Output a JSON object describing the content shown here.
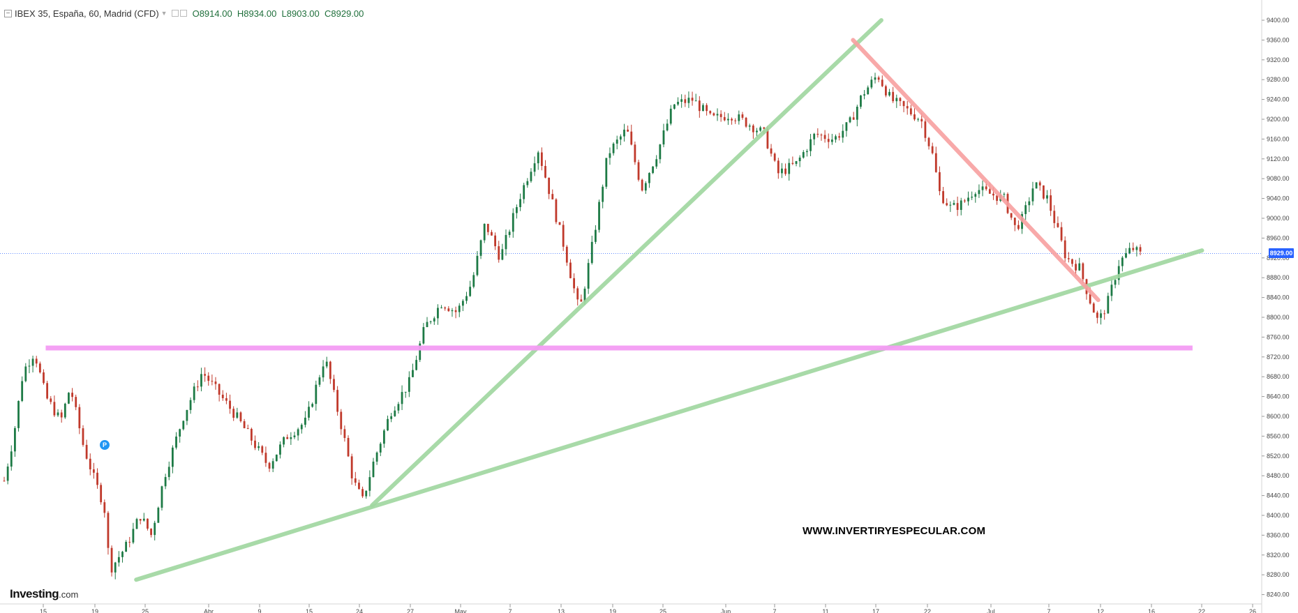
{
  "legend": {
    "symbol": "IBEX 35, España, 60, Madrid (CFD)",
    "open": "O8914.00",
    "high": "H8934.00",
    "low": "L8903.00",
    "close": "C8929.00",
    "collapse_icon": "minus-square-icon"
  },
  "watermark": "WWW.INVERTIRYESPECULAR.COM",
  "brand": {
    "name": "Investing",
    "suffix": ".com"
  },
  "current_price_label": "8929.00",
  "event_marker": {
    "label": "P",
    "color": "#2196f3"
  },
  "chart_data": {
    "type": "candlestick",
    "interval": "60",
    "y_axis_side": "right",
    "y_ticks": [
      8240,
      8280,
      8320,
      8360,
      8400,
      8440,
      8480,
      8520,
      8560,
      8600,
      8640,
      8680,
      8720,
      8760,
      8800,
      8840,
      8880,
      8920,
      8960,
      9000,
      9040,
      9080,
      9120,
      9160,
      9200,
      9240,
      9280,
      9320,
      9360,
      9400
    ],
    "ylim": [
      8220,
      9420
    ],
    "current_price": 8929,
    "x_labels": [
      "15",
      "19",
      "25",
      "Abr",
      "9",
      "15",
      "24",
      "27",
      "May",
      "7",
      "13",
      "19",
      "25",
      "Jun",
      "7",
      "11",
      "17",
      "22",
      "Jul",
      "7",
      "12",
      "16",
      "22",
      "26"
    ],
    "price_path": [
      [
        0,
        8470
      ],
      [
        0.5,
        8560
      ],
      [
        1,
        8690
      ],
      [
        1.6,
        8730
      ],
      [
        2.2,
        8640
      ],
      [
        3,
        8590
      ],
      [
        3.5,
        8660
      ],
      [
        4.2,
        8540
      ],
      [
        4.8,
        8470
      ],
      [
        5.3,
        8420
      ],
      [
        5.6,
        8290
      ],
      [
        6.5,
        8340
      ],
      [
        7.2,
        8400
      ],
      [
        7.8,
        8360
      ],
      [
        8.5,
        8480
      ],
      [
        9.5,
        8600
      ],
      [
        10.5,
        8690
      ],
      [
        11.5,
        8640
      ],
      [
        12.3,
        8600
      ],
      [
        13,
        8560
      ],
      [
        14,
        8500
      ],
      [
        15,
        8560
      ],
      [
        16,
        8590
      ],
      [
        17,
        8720
      ],
      [
        18,
        8560
      ],
      [
        18.5,
        8470
      ],
      [
        19,
        8430
      ],
      [
        19.6,
        8510
      ],
      [
        20.5,
        8610
      ],
      [
        21.5,
        8670
      ],
      [
        22.3,
        8780
      ],
      [
        23.2,
        8830
      ],
      [
        24,
        8810
      ],
      [
        24.8,
        8870
      ],
      [
        25.5,
        8990
      ],
      [
        26.3,
        8920
      ],
      [
        27.3,
        9040
      ],
      [
        28.3,
        9140
      ],
      [
        29,
        9040
      ],
      [
        29.7,
        8940
      ],
      [
        30.5,
        8810
      ],
      [
        31.2,
        8950
      ],
      [
        32,
        9130
      ],
      [
        33,
        9180
      ],
      [
        33.8,
        9060
      ],
      [
        34.6,
        9130
      ],
      [
        35.5,
        9230
      ],
      [
        36.5,
        9240
      ],
      [
        37.5,
        9200
      ],
      [
        38.5,
        9210
      ],
      [
        39.5,
        9190
      ],
      [
        40.3,
        9170
      ],
      [
        41,
        9090
      ],
      [
        42,
        9110
      ],
      [
        43,
        9170
      ],
      [
        44,
        9160
      ],
      [
        44.8,
        9190
      ],
      [
        45.5,
        9250
      ],
      [
        46.3,
        9290
      ],
      [
        47,
        9240
      ],
      [
        47.8,
        9220
      ],
      [
        48.6,
        9200
      ],
      [
        49.2,
        9130
      ],
      [
        49.6,
        9050
      ],
      [
        50.2,
        9020
      ],
      [
        50.8,
        9030
      ],
      [
        51.5,
        9060
      ],
      [
        52.2,
        9050
      ],
      [
        53,
        9040
      ],
      [
        53.6,
        8980
      ],
      [
        54,
        9000
      ],
      [
        54.6,
        9070
      ],
      [
        55.3,
        9040
      ],
      [
        55.8,
        8980
      ],
      [
        56.3,
        8920
      ],
      [
        57,
        8900
      ],
      [
        57.6,
        8830
      ],
      [
        58,
        8790
      ],
      [
        58.5,
        8830
      ],
      [
        59.1,
        8910
      ],
      [
        59.8,
        8940
      ],
      [
        60.3,
        8925
      ]
    ],
    "annotations": [
      {
        "kind": "support-line",
        "color": "#9fd69f",
        "from": [
          7,
          8270
        ],
        "to": [
          63.5,
          8935
        ]
      },
      {
        "kind": "support-line",
        "color": "#9fd69f",
        "from": [
          19.5,
          8420
        ],
        "to": [
          46.5,
          9400
        ]
      },
      {
        "kind": "resistance-line",
        "color": "#f7a0a0",
        "from": [
          45,
          9360
        ],
        "to": [
          58,
          8835
        ]
      },
      {
        "kind": "horizontal-level",
        "color": "#f39cf3",
        "price": 8738,
        "from_index": 2.2,
        "to_index": 63
      }
    ]
  }
}
